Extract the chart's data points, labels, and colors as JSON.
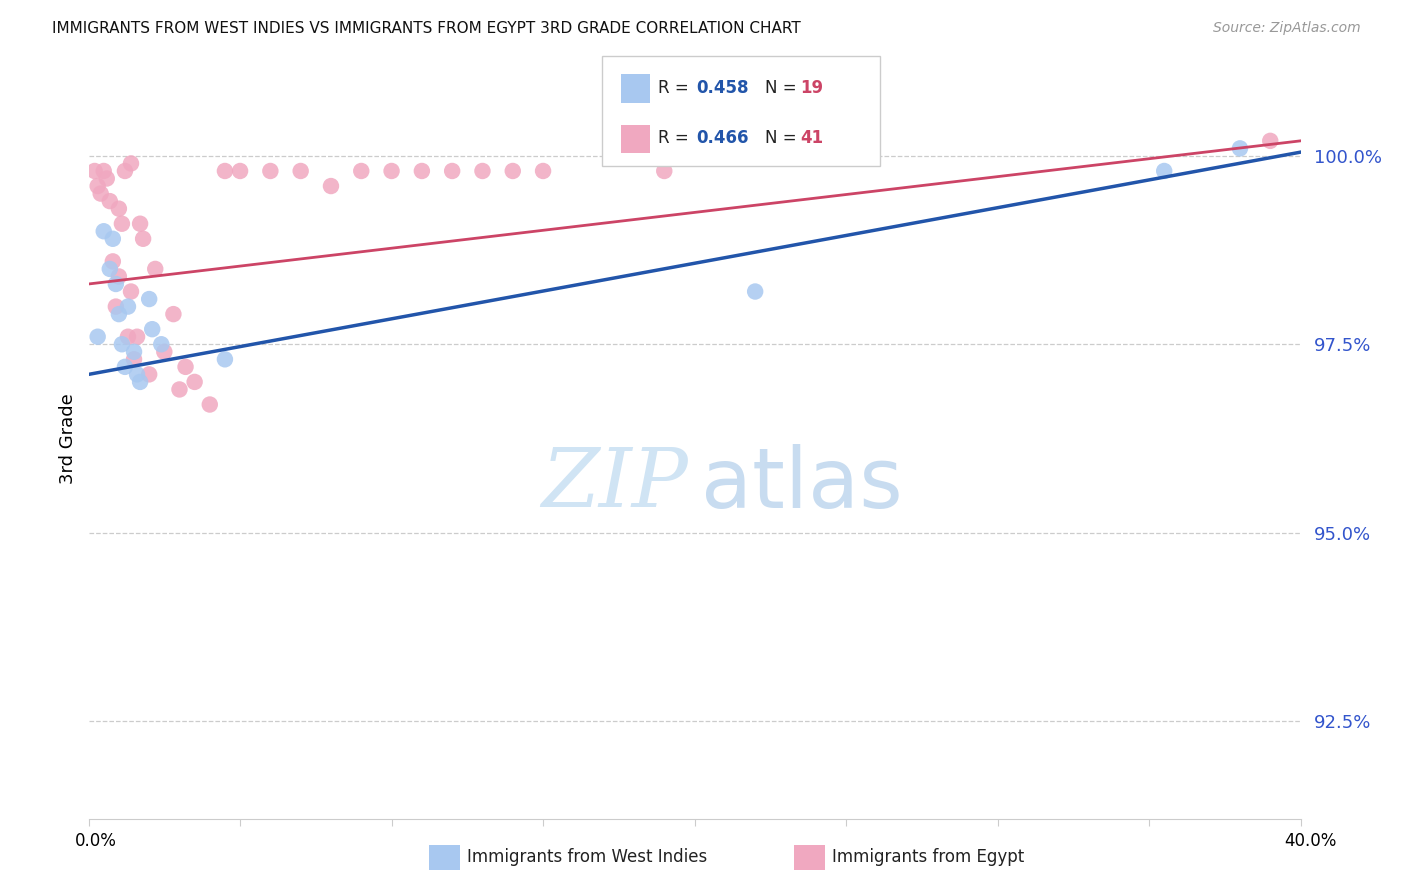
{
  "title": "IMMIGRANTS FROM WEST INDIES VS IMMIGRANTS FROM EGYPT 3RD GRADE CORRELATION CHART",
  "source": "Source: ZipAtlas.com",
  "ylabel": "3rd Grade",
  "y_ticks": [
    92.5,
    95.0,
    97.5,
    100.0
  ],
  "y_tick_labels": [
    "92.5%",
    "95.0%",
    "97.5%",
    "100.0%"
  ],
  "xlim": [
    0.0,
    40.0
  ],
  "ylim": [
    91.2,
    101.3
  ],
  "legend_label_blue": "Immigrants from West Indies",
  "legend_label_pink": "Immigrants from Egypt",
  "blue_color": "#A8C8F0",
  "pink_color": "#F0A8C0",
  "blue_line_color": "#2255AA",
  "pink_line_color": "#CC4466",
  "watermark_zip_color": "#D0E4F4",
  "watermark_atlas_color": "#C8DCF0",
  "blue_r": "0.458",
  "blue_n": "19",
  "pink_r": "0.466",
  "pink_n": "41",
  "r_color": "#2255AA",
  "n_color": "#CC4466",
  "blue_x": [
    0.3,
    0.5,
    0.7,
    0.8,
    0.9,
    1.0,
    1.1,
    1.2,
    1.3,
    1.5,
    1.6,
    1.7,
    2.0,
    2.1,
    2.4,
    4.5,
    22.0,
    35.5,
    38.0
  ],
  "blue_y": [
    97.6,
    99.0,
    98.5,
    98.9,
    98.3,
    97.9,
    97.5,
    97.2,
    98.0,
    97.4,
    97.1,
    97.0,
    98.1,
    97.7,
    97.5,
    97.3,
    98.2,
    99.8,
    100.1
  ],
  "pink_x": [
    0.2,
    0.3,
    0.4,
    0.5,
    0.6,
    0.7,
    0.8,
    0.9,
    1.0,
    1.0,
    1.1,
    1.2,
    1.3,
    1.4,
    1.4,
    1.5,
    1.6,
    1.7,
    1.8,
    2.0,
    2.2,
    2.5,
    2.8,
    3.0,
    3.2,
    3.5,
    4.0,
    4.5,
    5.0,
    6.0,
    7.0,
    8.0,
    9.0,
    10.0,
    11.0,
    12.0,
    13.0,
    14.0,
    15.0,
    19.0,
    39.0
  ],
  "pink_y": [
    99.8,
    99.6,
    99.5,
    99.8,
    99.7,
    99.4,
    98.6,
    98.0,
    98.4,
    99.3,
    99.1,
    99.8,
    97.6,
    99.9,
    98.2,
    97.3,
    97.6,
    99.1,
    98.9,
    97.1,
    98.5,
    97.4,
    97.9,
    96.9,
    97.2,
    97.0,
    96.7,
    99.8,
    99.8,
    99.8,
    99.8,
    99.6,
    99.8,
    99.8,
    99.8,
    99.8,
    99.8,
    99.8,
    99.8,
    99.8,
    100.2
  ],
  "blue_line_x": [
    0.0,
    40.0
  ],
  "blue_line_y": [
    97.1,
    100.05
  ],
  "pink_line_x": [
    0.0,
    40.0
  ],
  "pink_line_y": [
    98.3,
    100.2
  ]
}
